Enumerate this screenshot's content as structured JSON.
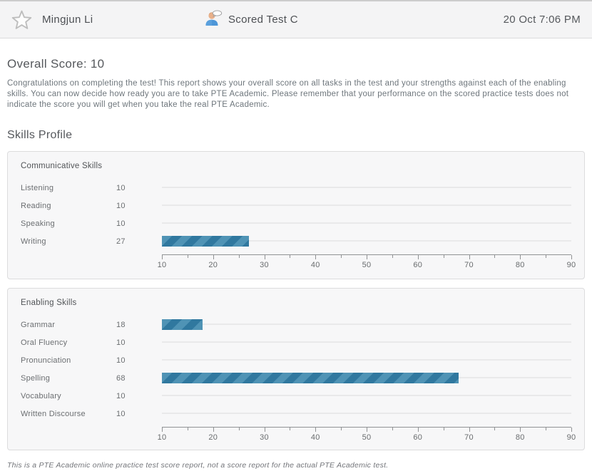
{
  "header": {
    "student_name": "Mingjun Li",
    "test_name": "Scored Test C",
    "datetime": "20 Oct 7:06 PM"
  },
  "overall": {
    "title": "Overall Score: 10"
  },
  "intro_text": "Congratulations on completing the test! This report shows your overall score on all tasks in the test and your strengths against each of the enabling skills. You can now decide how ready you are to take PTE Academic. Please remember that your performance on the scored practice tests does not indicate the score you will get when you take the real PTE Academic.",
  "skills_profile_title": "Skills Profile",
  "chart_data": [
    {
      "type": "bar",
      "orientation": "horizontal",
      "title": "Communicative Skills",
      "categories": [
        "Listening",
        "Reading",
        "Speaking",
        "Writing"
      ],
      "values": [
        10,
        10,
        10,
        27
      ],
      "xlim": [
        10,
        90
      ],
      "tick_major": 10,
      "tick_minor": 5,
      "grid": "row-tracks",
      "legend": "none"
    },
    {
      "type": "bar",
      "orientation": "horizontal",
      "title": "Enabling Skills",
      "categories": [
        "Grammar",
        "Oral Fluency",
        "Pronunciation",
        "Spelling",
        "Vocabulary",
        "Written Discourse"
      ],
      "values": [
        18,
        10,
        10,
        68,
        10,
        10
      ],
      "xlim": [
        10,
        90
      ],
      "tick_major": 10,
      "tick_minor": 5,
      "grid": "row-tracks",
      "legend": "none"
    }
  ],
  "footer_note": "This is a PTE Academic online practice test score report, not a score report for the actual PTE Academic test.",
  "colors": {
    "bar_base": "#30789f",
    "bar_stripe": "#4f93b5",
    "track": "#e9e9ea",
    "panel_bg": "#f7f7f8",
    "panel_border": "#dcdcdd",
    "header_bg": "#f4f4f5",
    "axis": "#909294",
    "text_heading": "#55585c",
    "text_body": "#6e767c"
  }
}
